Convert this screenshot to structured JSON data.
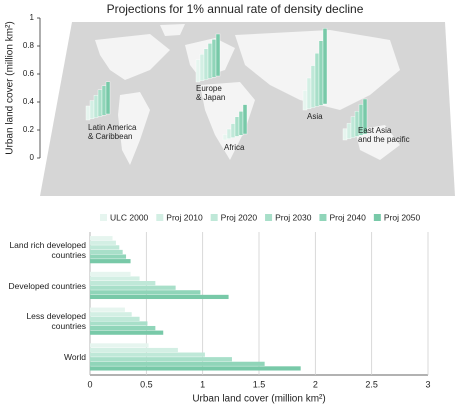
{
  "chart_data": [
    {
      "type": "bar",
      "title": "Projections for 1% annual rate of density decline",
      "y_label": "Urban land cover (million km²)",
      "categories": [
        "Europe\n& Japan",
        "Latin America\n& Caribbean",
        "Asia",
        "Africa",
        "East Asia\nand the pacific"
      ],
      "series": [
        {
          "color": "#e6f5ef",
          "values": [
            0.16,
            0.1,
            0.14,
            0.04,
            0.08
          ]
        },
        {
          "color": "#d3efe4",
          "values": [
            0.19,
            0.13,
            0.22,
            0.07,
            0.11
          ]
        },
        {
          "color": "#bfe8d8",
          "values": [
            0.22,
            0.16,
            0.3,
            0.1,
            0.15
          ]
        },
        {
          "color": "#a8dfc9",
          "values": [
            0.25,
            0.19,
            0.38,
            0.14,
            0.18
          ]
        },
        {
          "color": "#90d5b9",
          "values": [
            0.27,
            0.21,
            0.46,
            0.17,
            0.22
          ]
        },
        {
          "color": "#78c9a8",
          "values": [
            0.3,
            0.23,
            0.54,
            0.21,
            0.25
          ]
        }
      ],
      "ylim": [
        0,
        1
      ],
      "yticks": [
        0,
        0.2,
        0.4,
        0.6,
        0.8,
        1
      ]
    },
    {
      "type": "barh",
      "x_label": "Urban land cover (million km²)",
      "categories": [
        "Land rich developed\ncountries",
        "Developed countries",
        "Less developed\ncountries",
        "World"
      ],
      "series": [
        {
          "name": "ULC 2000",
          "color": "#e6f5ef",
          "values": [
            0.2,
            0.36,
            0.31,
            0.52
          ]
        },
        {
          "name": "Proj 2010",
          "color": "#d3efe4",
          "values": [
            0.23,
            0.44,
            0.37,
            0.78
          ]
        },
        {
          "name": "Proj 2020",
          "color": "#bfe8d8",
          "values": [
            0.26,
            0.58,
            0.44,
            1.02
          ]
        },
        {
          "name": "Proj 2030",
          "color": "#a8dfc9",
          "values": [
            0.29,
            0.76,
            0.51,
            1.26
          ]
        },
        {
          "name": "Proj 2040",
          "color": "#90d5b9",
          "values": [
            0.32,
            0.98,
            0.58,
            1.55
          ]
        },
        {
          "name": "Proj 2050",
          "color": "#78c9a8",
          "values": [
            0.36,
            1.23,
            0.65,
            1.87
          ]
        }
      ],
      "xlim": [
        0,
        3
      ],
      "xticks": [
        0,
        0.5,
        1,
        1.5,
        2,
        2.5,
        3
      ],
      "grid": true,
      "legend": "top"
    }
  ]
}
